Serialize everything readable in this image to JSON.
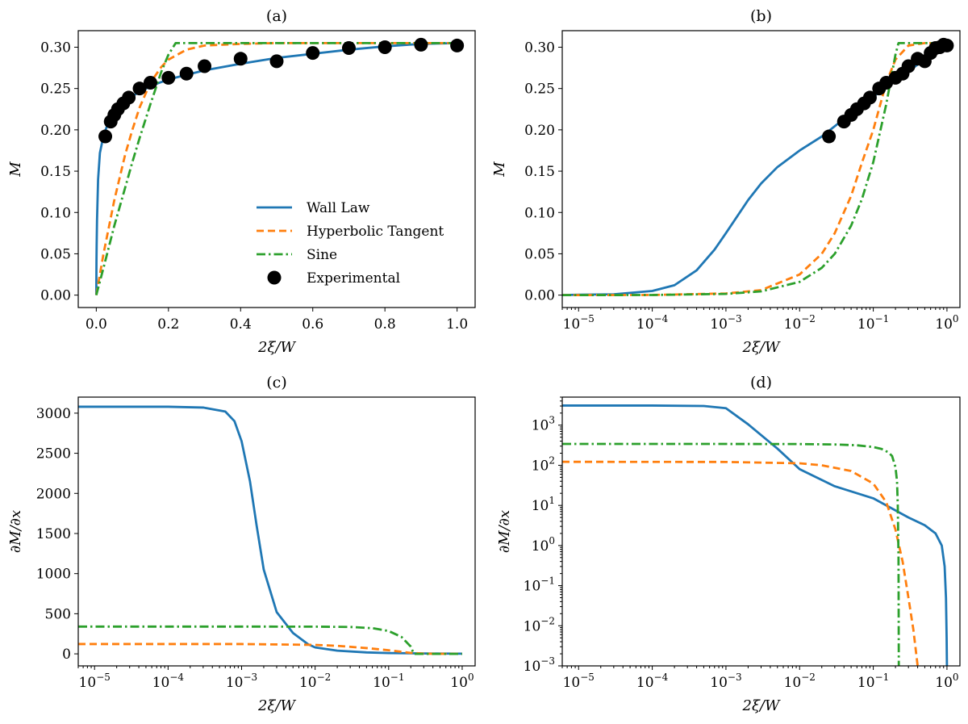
{
  "colors": {
    "wall": "#1f77b4",
    "tanh": "#ff7f0e",
    "sine": "#2ca02c",
    "exp": "#000000"
  },
  "legend": {
    "placement": "lower-right",
    "entries": [
      {
        "key": "wall",
        "label": "Wall Law"
      },
      {
        "key": "tanh",
        "label": "Hyperbolic Tangent"
      },
      {
        "key": "sine",
        "label": "Sine"
      },
      {
        "key": "exp",
        "label": "Experimental"
      }
    ]
  },
  "chart_data": [
    {
      "id": "a",
      "type": "line",
      "title": "(a)",
      "xlabel": "2ξ/W",
      "ylabel": "M",
      "xscale": "linear",
      "yscale": "linear",
      "xlim": [
        -0.05,
        1.05
      ],
      "ylim": [
        -0.015,
        0.32
      ],
      "xticks": [
        0.0,
        0.2,
        0.4,
        0.6,
        0.8,
        1.0
      ],
      "xtick_labels": [
        "0.0",
        "0.2",
        "0.4",
        "0.6",
        "0.8",
        "1.0"
      ],
      "yticks": [
        0.0,
        0.05,
        0.1,
        0.15,
        0.2,
        0.25,
        0.3
      ],
      "ytick_labels": [
        "0.00",
        "0.05",
        "0.10",
        "0.15",
        "0.20",
        "0.25",
        "0.30"
      ],
      "series": [
        {
          "key": "wall",
          "name": "Wall Law",
          "style": "solid",
          "x": [
            0,
            0.0005,
            0.001,
            0.002,
            0.005,
            0.01,
            0.02,
            0.03,
            0.05,
            0.07,
            0.1,
            0.15,
            0.2,
            0.3,
            0.4,
            0.5,
            0.6,
            0.7,
            0.8,
            0.9,
            1.0
          ],
          "y": [
            0,
            0.04,
            0.06,
            0.09,
            0.14,
            0.172,
            0.193,
            0.205,
            0.22,
            0.231,
            0.241,
            0.253,
            0.261,
            0.272,
            0.28,
            0.287,
            0.292,
            0.297,
            0.301,
            0.304,
            0.305
          ]
        },
        {
          "key": "tanh",
          "name": "Hyperbolic Tangent",
          "style": "dashed",
          "x": [
            0,
            0.02,
            0.05,
            0.08,
            0.1,
            0.12,
            0.15,
            0.18,
            0.2,
            0.25,
            0.3,
            0.4,
            0.5,
            0.6,
            0.8,
            1.0
          ],
          "y": [
            0,
            0.05,
            0.115,
            0.17,
            0.2,
            0.227,
            0.257,
            0.276,
            0.285,
            0.297,
            0.302,
            0.304,
            0.305,
            0.305,
            0.305,
            0.305
          ]
        },
        {
          "key": "sine",
          "name": "Sine",
          "style": "dashdot",
          "x": [
            0,
            0.02,
            0.05,
            0.08,
            0.1,
            0.12,
            0.15,
            0.18,
            0.2,
            0.22,
            0.3,
            0.5,
            0.7,
            1.0
          ],
          "y": [
            0,
            0.033,
            0.084,
            0.13,
            0.161,
            0.19,
            0.231,
            0.27,
            0.291,
            0.305,
            0.305,
            0.305,
            0.305,
            0.305
          ]
        },
        {
          "key": "exp",
          "name": "Experimental",
          "style": "markers",
          "x": [
            0.025,
            0.04,
            0.05,
            0.06,
            0.075,
            0.09,
            0.12,
            0.15,
            0.2,
            0.25,
            0.3,
            0.4,
            0.5,
            0.6,
            0.7,
            0.8,
            0.9,
            1.0
          ],
          "y": [
            0.192,
            0.21,
            0.218,
            0.225,
            0.232,
            0.239,
            0.25,
            0.257,
            0.263,
            0.268,
            0.277,
            0.286,
            0.283,
            0.293,
            0.299,
            0.3,
            0.303,
            0.302
          ]
        }
      ]
    },
    {
      "id": "b",
      "type": "line",
      "title": "(b)",
      "xlabel": "2ξ/W",
      "ylabel": "M",
      "xscale": "log",
      "yscale": "linear",
      "xlim": [
        6e-06,
        1.5
      ],
      "ylim": [
        -0.015,
        0.32
      ],
      "xticks": [
        1e-05,
        0.0001,
        0.001,
        0.01,
        0.1,
        1
      ],
      "xtick_labels": [
        [
          "10",
          "−5"
        ],
        [
          "10",
          "−4"
        ],
        [
          "10",
          "−3"
        ],
        [
          "10",
          "−2"
        ],
        [
          "10",
          "−1"
        ],
        [
          "10",
          "0"
        ]
      ],
      "yticks": [
        0.0,
        0.05,
        0.1,
        0.15,
        0.2,
        0.25,
        0.3
      ],
      "ytick_labels": [
        "0.00",
        "0.05",
        "0.10",
        "0.15",
        "0.20",
        "0.25",
        "0.30"
      ],
      "series": [
        {
          "key": "wall",
          "name": "Wall Law",
          "style": "solid",
          "x": [
            6e-06,
            1e-05,
            3e-05,
            0.0001,
            0.0002,
            0.0004,
            0.0007,
            0.001,
            0.002,
            0.003,
            0.005,
            0.01,
            0.02,
            0.05,
            0.1,
            0.2,
            0.5,
            1
          ],
          "y": [
            0.0,
            0.0005,
            0.001,
            0.005,
            0.012,
            0.03,
            0.055,
            0.075,
            0.115,
            0.135,
            0.155,
            0.175,
            0.192,
            0.22,
            0.24,
            0.26,
            0.285,
            0.305
          ]
        },
        {
          "key": "tanh",
          "name": "Hyperbolic Tangent",
          "style": "dashed",
          "x": [
            6e-06,
            0.0001,
            0.001,
            0.003,
            0.01,
            0.02,
            0.03,
            0.05,
            0.07,
            0.1,
            0.15,
            0.2,
            0.3,
            0.5,
            1
          ],
          "y": [
            0,
            0.0002,
            0.002,
            0.006,
            0.025,
            0.05,
            0.075,
            0.12,
            0.16,
            0.2,
            0.257,
            0.285,
            0.302,
            0.305,
            0.305
          ]
        },
        {
          "key": "sine",
          "name": "Sine",
          "style": "dashdot",
          "x": [
            6e-06,
            0.0001,
            0.001,
            0.003,
            0.01,
            0.02,
            0.03,
            0.05,
            0.07,
            0.1,
            0.15,
            0.2,
            0.22,
            0.3,
            1
          ],
          "y": [
            0,
            0.00015,
            0.0015,
            0.0045,
            0.016,
            0.033,
            0.05,
            0.084,
            0.116,
            0.161,
            0.231,
            0.291,
            0.305,
            0.305,
            0.305
          ]
        },
        {
          "key": "exp",
          "name": "Experimental",
          "style": "markers",
          "x": [
            0.025,
            0.04,
            0.05,
            0.06,
            0.075,
            0.09,
            0.12,
            0.15,
            0.2,
            0.25,
            0.3,
            0.4,
            0.5,
            0.6,
            0.7,
            0.8,
            0.9,
            1.0
          ],
          "y": [
            0.192,
            0.21,
            0.218,
            0.225,
            0.232,
            0.239,
            0.25,
            0.257,
            0.263,
            0.268,
            0.277,
            0.286,
            0.283,
            0.293,
            0.299,
            0.3,
            0.303,
            0.302
          ]
        }
      ]
    },
    {
      "id": "c",
      "type": "line",
      "title": "(c)",
      "xlabel": "2ξ/W",
      "ylabel": "∂M/∂x",
      "xscale": "log",
      "yscale": "linear",
      "xlim": [
        6e-06,
        1.5
      ],
      "ylim": [
        -150,
        3200
      ],
      "xticks": [
        1e-05,
        0.0001,
        0.001,
        0.01,
        0.1,
        1
      ],
      "xtick_labels": [
        [
          "10",
          "−5"
        ],
        [
          "10",
          "−4"
        ],
        [
          "10",
          "−3"
        ],
        [
          "10",
          "−2"
        ],
        [
          "10",
          "−1"
        ],
        [
          "10",
          "0"
        ]
      ],
      "yticks": [
        0,
        500,
        1000,
        1500,
        2000,
        2500,
        3000
      ],
      "ytick_labels": [
        "0",
        "500",
        "1000",
        "1500",
        "2000",
        "2500",
        "3000"
      ],
      "series": [
        {
          "key": "wall",
          "name": "Wall Law",
          "style": "solid",
          "x": [
            6e-06,
            0.0001,
            0.0003,
            0.0006,
            0.0008,
            0.001,
            0.0013,
            0.0016,
            0.002,
            0.003,
            0.005,
            0.008,
            0.01,
            0.02,
            0.05,
            0.1,
            0.3,
            1
          ],
          "y": [
            3080,
            3080,
            3070,
            3020,
            2900,
            2650,
            2150,
            1600,
            1050,
            520,
            260,
            120,
            80,
            40,
            18,
            10,
            5,
            2
          ]
        },
        {
          "key": "tanh",
          "name": "Hyperbolic Tangent",
          "style": "dashed",
          "x": [
            6e-06,
            0.001,
            0.01,
            0.02,
            0.05,
            0.1,
            0.2,
            0.3,
            0.5,
            1
          ],
          "y": [
            122,
            122,
            112,
            100,
            72,
            45,
            12,
            3,
            1,
            0
          ]
        },
        {
          "key": "sine",
          "name": "Sine",
          "style": "dashdot",
          "x": [
            6e-06,
            0.001,
            0.01,
            0.03,
            0.06,
            0.1,
            0.15,
            0.2,
            0.22,
            0.3,
            1
          ],
          "y": [
            340,
            340,
            339,
            335,
            320,
            285,
            210,
            90,
            0,
            0,
            0
          ]
        }
      ]
    },
    {
      "id": "d",
      "type": "line",
      "title": "(d)",
      "xlabel": "2ξ/W",
      "ylabel": "∂M/∂x",
      "xscale": "log",
      "yscale": "log",
      "xlim": [
        6e-06,
        1.5
      ],
      "ylim": [
        0.001,
        5000
      ],
      "xticks": [
        1e-05,
        0.0001,
        0.001,
        0.01,
        0.1,
        1
      ],
      "xtick_labels": [
        [
          "10",
          "−5"
        ],
        [
          "10",
          "−4"
        ],
        [
          "10",
          "−3"
        ],
        [
          "10",
          "−2"
        ],
        [
          "10",
          "−1"
        ],
        [
          "10",
          "0"
        ]
      ],
      "yticks": [
        0.001,
        0.01,
        0.1,
        1,
        10,
        100,
        1000
      ],
      "ytick_labels": [
        [
          "10",
          "−3"
        ],
        [
          "10",
          "−2"
        ],
        [
          "10",
          "−1"
        ],
        [
          "10",
          "0"
        ],
        [
          "10",
          "1"
        ],
        [
          "10",
          "2"
        ],
        [
          "10",
          "3"
        ]
      ],
      "series": [
        {
          "key": "wall",
          "name": "Wall Law",
          "style": "solid",
          "x": [
            6e-06,
            0.0001,
            0.0005,
            0.001,
            0.002,
            0.005,
            0.01,
            0.03,
            0.1,
            0.3,
            0.5,
            0.7,
            0.85,
            0.93,
            0.97,
            0.99,
            0.999
          ],
          "y": [
            3080,
            3080,
            3000,
            2650,
            1050,
            260,
            80,
            30,
            15,
            5,
            3.2,
            2.0,
            1.0,
            0.3,
            0.05,
            0.005,
            0.001
          ]
        },
        {
          "key": "tanh",
          "name": "Hyperbolic Tangent",
          "style": "dashed",
          "x": [
            6e-06,
            0.001,
            0.01,
            0.02,
            0.05,
            0.1,
            0.15,
            0.2,
            0.25,
            0.3,
            0.35,
            0.4
          ],
          "y": [
            122,
            121,
            112,
            100,
            72,
            35,
            12,
            2.5,
            0.4,
            0.05,
            0.008,
            0.001
          ]
        },
        {
          "key": "sine",
          "name": "Sine",
          "style": "dashdot",
          "x": [
            6e-06,
            0.001,
            0.01,
            0.03,
            0.06,
            0.1,
            0.13,
            0.16,
            0.18,
            0.2,
            0.21,
            0.215,
            0.22,
            0.222
          ],
          "y": [
            340,
            340,
            338,
            330,
            315,
            285,
            255,
            210,
            170,
            90,
            40,
            10,
            0.5,
            0.001
          ]
        }
      ]
    }
  ]
}
